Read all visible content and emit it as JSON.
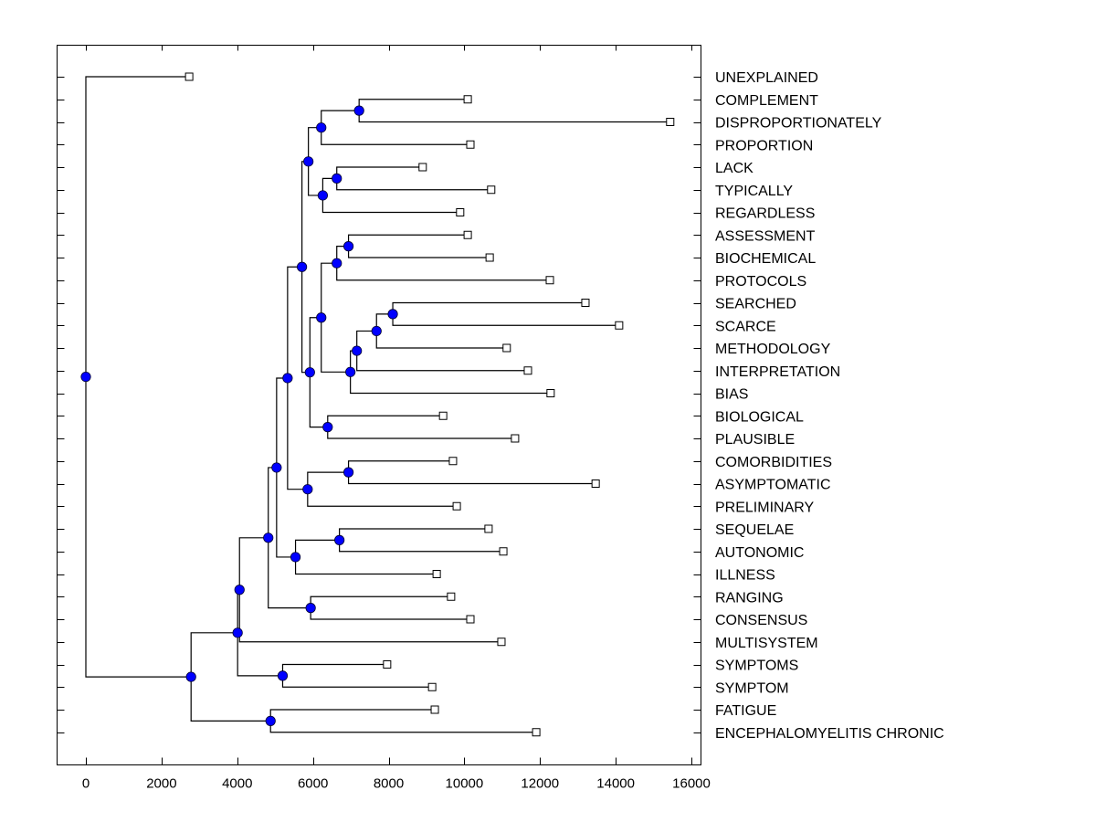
{
  "chart_data": {
    "type": "dendrogram",
    "title": "",
    "xlabel": "",
    "ylabel": "",
    "xlim": [
      -800,
      16500
    ],
    "x_ticks": [
      0,
      2000,
      4000,
      6000,
      8000,
      10000,
      12000,
      14000,
      16000
    ],
    "x_tick_labels": [
      "0",
      "2000",
      "4000",
      "6000",
      "8000",
      "10000",
      "12000",
      "14000",
      "16000"
    ],
    "grid": false,
    "node_color": "#0000ff",
    "leaf_marker": "hollow-square",
    "leaves": [
      {
        "label": "UNEXPLAINED",
        "value": 2730
      },
      {
        "label": "COMPLEMENT",
        "value": 10090
      },
      {
        "label": "DISPROPORTIONATELY",
        "value": 15440
      },
      {
        "label": "PROPORTION",
        "value": 10160
      },
      {
        "label": "LACK",
        "value": 8900
      },
      {
        "label": "TYPICALLY",
        "value": 10710
      },
      {
        "label": "REGARDLESS",
        "value": 9890
      },
      {
        "label": "ASSESSMENT",
        "value": 10090
      },
      {
        "label": "BIOCHEMICAL",
        "value": 10670
      },
      {
        "label": "PROTOCOLS",
        "value": 12260
      },
      {
        "label": "SEARCHED",
        "value": 13200
      },
      {
        "label": "SCARCE",
        "value": 14090
      },
      {
        "label": "METHODOLOGY",
        "value": 11120
      },
      {
        "label": "INTERPRETATION",
        "value": 11680
      },
      {
        "label": "BIAS",
        "value": 12280
      },
      {
        "label": "BIOLOGICAL",
        "value": 9440
      },
      {
        "label": "PLAUSIBLE",
        "value": 11340
      },
      {
        "label": "COMORBIDITIES",
        "value": 9700
      },
      {
        "label": "ASYMPTOMATIC",
        "value": 13470
      },
      {
        "label": "PRELIMINARY",
        "value": 9800
      },
      {
        "label": "SEQUELAE",
        "value": 10640
      },
      {
        "label": "AUTONOMIC",
        "value": 11030
      },
      {
        "label": "ILLNESS",
        "value": 9270
      },
      {
        "label": "RANGING",
        "value": 9650
      },
      {
        "label": "CONSENSUS",
        "value": 10160
      },
      {
        "label": "MULTISYSTEM",
        "value": 10980
      },
      {
        "label": "SYMPTOMS",
        "value": 7960
      },
      {
        "label": "SYMPTOM",
        "value": 9150
      },
      {
        "label": "FATIGUE",
        "value": 9220
      },
      {
        "label": "ENCEPHALOMYELITIS CHRONIC",
        "value": 11900
      }
    ],
    "nodes": [
      {
        "id": "n1",
        "value": 7220,
        "children": [
          "L1",
          "L2"
        ]
      },
      {
        "id": "n2",
        "value": 6220,
        "children": [
          "n1",
          "L3"
        ]
      },
      {
        "id": "n3",
        "value": 6630,
        "children": [
          "L4",
          "L5"
        ]
      },
      {
        "id": "n4",
        "value": 6260,
        "children": [
          "n3",
          "L6"
        ]
      },
      {
        "id": "n5",
        "value": 5880,
        "children": [
          "n2",
          "n4"
        ]
      },
      {
        "id": "n6",
        "value": 6940,
        "children": [
          "L7",
          "L8"
        ]
      },
      {
        "id": "n7",
        "value": 6630,
        "children": [
          "n6",
          "L9"
        ]
      },
      {
        "id": "n8",
        "value": 8110,
        "children": [
          "L10",
          "L11"
        ]
      },
      {
        "id": "n9",
        "value": 7680,
        "children": [
          "n8",
          "L12"
        ]
      },
      {
        "id": "n10",
        "value": 7160,
        "children": [
          "n9",
          "L13"
        ]
      },
      {
        "id": "n11",
        "value": 6990,
        "children": [
          "n10",
          "L14"
        ]
      },
      {
        "id": "n12",
        "value": 6220,
        "children": [
          "n7",
          "n11"
        ]
      },
      {
        "id": "n13",
        "value": 6390,
        "children": [
          "L15",
          "L16"
        ]
      },
      {
        "id": "n14",
        "value": 5920,
        "children": [
          "n12",
          "n13"
        ]
      },
      {
        "id": "n15",
        "value": 5710,
        "children": [
          "n5",
          "n14"
        ]
      },
      {
        "id": "n16",
        "value": 6940,
        "children": [
          "L17",
          "L18"
        ]
      },
      {
        "id": "n17",
        "value": 5860,
        "children": [
          "n16",
          "L19"
        ]
      },
      {
        "id": "n18",
        "value": 5330,
        "children": [
          "n15",
          "n17"
        ]
      },
      {
        "id": "n19",
        "value": 6700,
        "children": [
          "L20",
          "L21"
        ]
      },
      {
        "id": "n20",
        "value": 5540,
        "children": [
          "n19",
          "L22"
        ]
      },
      {
        "id": "n21",
        "value": 5040,
        "children": [
          "n18",
          "n20"
        ]
      },
      {
        "id": "n22",
        "value": 5940,
        "children": [
          "L23",
          "L24"
        ]
      },
      {
        "id": "n23",
        "value": 4820,
        "children": [
          "n21",
          "n22"
        ]
      },
      {
        "id": "n24",
        "value": 4060,
        "children": [
          "n23",
          "L25"
        ]
      },
      {
        "id": "n25",
        "value": 5200,
        "children": [
          "L26",
          "L27"
        ]
      },
      {
        "id": "n26",
        "value": 4010,
        "children": [
          "n24",
          "n25"
        ]
      },
      {
        "id": "n27",
        "value": 4880,
        "children": [
          "L28",
          "L29"
        ]
      },
      {
        "id": "n28",
        "value": 2780,
        "children": [
          "n26",
          "n27"
        ]
      },
      {
        "id": "n29",
        "value": 0,
        "children": [
          "L0",
          "n28"
        ]
      }
    ]
  }
}
